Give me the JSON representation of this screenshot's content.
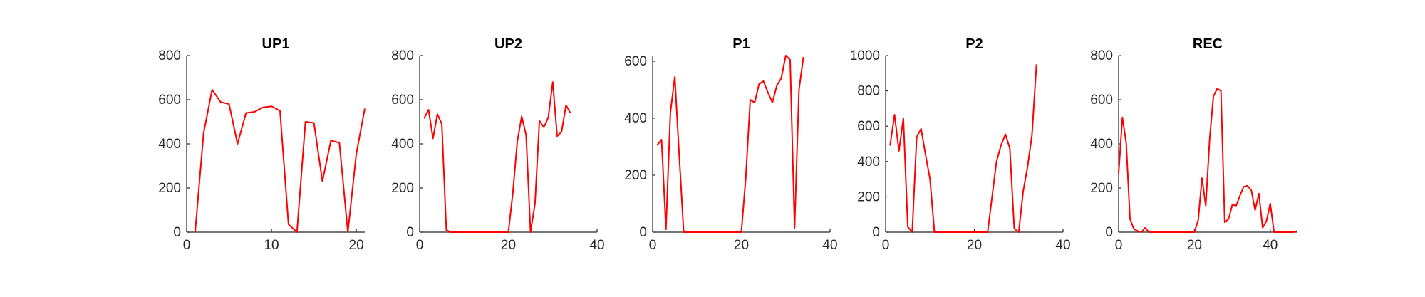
{
  "chart_data": [
    {
      "type": "line",
      "title": "UP1",
      "xlim": [
        0,
        21
      ],
      "ylim": [
        0,
        800
      ],
      "xticks": [
        0,
        10,
        20
      ],
      "yticks": [
        0,
        200,
        400,
        600,
        800
      ],
      "line_color": "#ff0000",
      "x": [
        1,
        2,
        3,
        4,
        5,
        6,
        7,
        8,
        9,
        10,
        11,
        12,
        13,
        14,
        15,
        16,
        17,
        18,
        19,
        20,
        21
      ],
      "y": [
        0,
        450,
        645,
        590,
        580,
        400,
        540,
        545,
        565,
        570,
        550,
        35,
        0,
        500,
        495,
        230,
        415,
        405,
        0,
        355,
        560
      ]
    },
    {
      "type": "line",
      "title": "UP2",
      "xlim": [
        0,
        40
      ],
      "ylim": [
        0,
        800
      ],
      "xticks": [
        0,
        20,
        40
      ],
      "yticks": [
        0,
        200,
        400,
        600,
        800
      ],
      "line_color": "#ff0000",
      "x": [
        1,
        2,
        3,
        4,
        5,
        6,
        7,
        8,
        9,
        10,
        11,
        12,
        13,
        14,
        15,
        16,
        17,
        18,
        19,
        20,
        21,
        22,
        23,
        24,
        25,
        26,
        27,
        28,
        29,
        30,
        31,
        32,
        33,
        34
      ],
      "y": [
        515,
        555,
        425,
        535,
        490,
        10,
        0,
        0,
        0,
        0,
        0,
        0,
        0,
        0,
        0,
        0,
        0,
        0,
        0,
        0,
        175,
        410,
        525,
        440,
        0,
        130,
        505,
        475,
        520,
        680,
        435,
        455,
        575,
        540
      ]
    },
    {
      "type": "line",
      "title": "P1",
      "xlim": [
        0,
        40
      ],
      "ylim": [
        0,
        620
      ],
      "xticks": [
        0,
        20,
        40
      ],
      "yticks": [
        0,
        200,
        400,
        600
      ],
      "line_color": "#ff0000",
      "x": [
        1,
        2,
        3,
        4,
        5,
        6,
        7,
        8,
        9,
        10,
        11,
        12,
        13,
        14,
        15,
        16,
        17,
        18,
        19,
        20,
        21,
        22,
        23,
        24,
        25,
        26,
        27,
        28,
        29,
        30,
        31,
        32,
        33,
        34
      ],
      "y": [
        305,
        325,
        10,
        420,
        545,
        265,
        0,
        0,
        0,
        0,
        0,
        0,
        0,
        0,
        0,
        0,
        0,
        0,
        0,
        0,
        190,
        465,
        455,
        520,
        530,
        490,
        455,
        515,
        540,
        620,
        605,
        15,
        500,
        615
      ]
    },
    {
      "type": "line",
      "title": "P2",
      "xlim": [
        0,
        40
      ],
      "ylim": [
        0,
        1000
      ],
      "xticks": [
        0,
        20,
        40
      ],
      "yticks": [
        0,
        200,
        400,
        600,
        800,
        1000
      ],
      "line_color": "#ff0000",
      "x": [
        1,
        2,
        3,
        4,
        5,
        6,
        7,
        8,
        9,
        10,
        11,
        12,
        13,
        14,
        15,
        16,
        17,
        18,
        19,
        20,
        21,
        22,
        23,
        24,
        25,
        26,
        27,
        28,
        29,
        30,
        31,
        32,
        33,
        34
      ],
      "y": [
        490,
        665,
        460,
        645,
        30,
        0,
        540,
        585,
        440,
        300,
        0,
        0,
        0,
        0,
        0,
        0,
        0,
        0,
        0,
        0,
        0,
        0,
        0,
        200,
        400,
        490,
        555,
        475,
        20,
        0,
        230,
        370,
        550,
        950
      ]
    },
    {
      "type": "line",
      "title": "REC",
      "xlim": [
        0,
        47
      ],
      "ylim": [
        0,
        800
      ],
      "xticks": [
        0,
        20,
        40
      ],
      "yticks": [
        0,
        200,
        400,
        600,
        800
      ],
      "line_color": "#ff0000",
      "x": [
        0,
        1,
        2,
        3,
        4,
        5,
        6,
        7,
        8,
        9,
        10,
        11,
        12,
        13,
        14,
        15,
        16,
        17,
        18,
        19,
        20,
        21,
        22,
        23,
        24,
        25,
        26,
        27,
        28,
        29,
        30,
        31,
        32,
        33,
        34,
        35,
        36,
        37,
        38,
        39,
        40,
        41,
        42,
        43,
        44,
        45,
        46,
        47
      ],
      "y": [
        265,
        520,
        405,
        60,
        15,
        5,
        0,
        20,
        0,
        0,
        0,
        0,
        0,
        0,
        0,
        0,
        0,
        0,
        0,
        0,
        0,
        55,
        245,
        120,
        420,
        615,
        650,
        640,
        45,
        60,
        125,
        120,
        165,
        205,
        210,
        190,
        100,
        175,
        20,
        50,
        130,
        0,
        0,
        0,
        0,
        0,
        0,
        5
      ]
    }
  ]
}
